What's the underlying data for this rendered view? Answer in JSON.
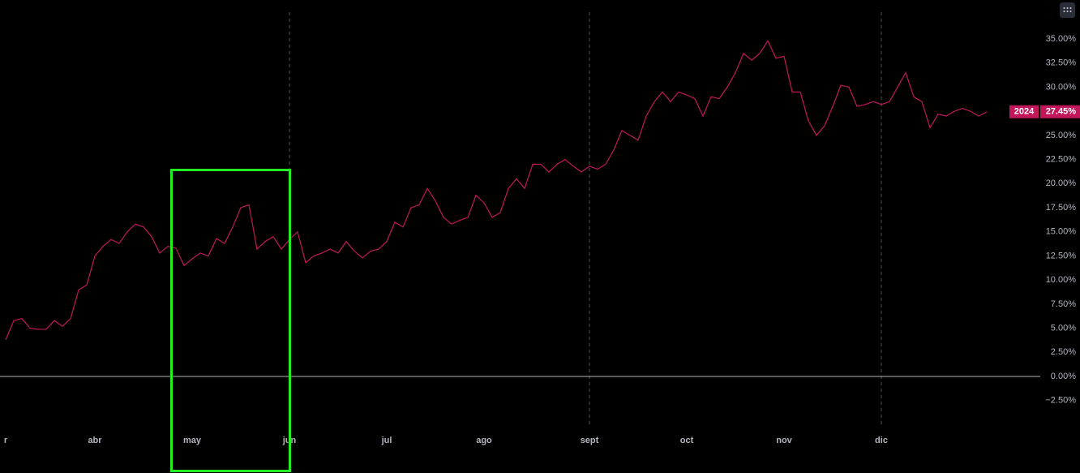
{
  "chart_data": {
    "type": "line",
    "categories": [
      "r",
      null,
      null,
      null,
      null,
      null,
      null,
      null,
      null,
      null,
      null,
      "abr",
      null,
      null,
      null,
      null,
      null,
      null,
      null,
      null,
      null,
      null,
      null,
      "may",
      null,
      null,
      null,
      null,
      null,
      null,
      null,
      null,
      null,
      null,
      null,
      "jun",
      null,
      null,
      null,
      null,
      null,
      null,
      null,
      null,
      null,
      null,
      null,
      "jul",
      null,
      null,
      null,
      null,
      null,
      null,
      null,
      null,
      null,
      null,
      null,
      "ago",
      null,
      null,
      null,
      null,
      null,
      null,
      null,
      null,
      null,
      null,
      null,
      null,
      "sept",
      null,
      null,
      null,
      null,
      null,
      null,
      null,
      null,
      null,
      null,
      null,
      "oct",
      null,
      null,
      null,
      null,
      null,
      null,
      null,
      null,
      null,
      null,
      null,
      "nov",
      null,
      null,
      null,
      null,
      null,
      null,
      null,
      null,
      null,
      null,
      null,
      "dic",
      null,
      null,
      null,
      null,
      null,
      null,
      null,
      null,
      null,
      null,
      null,
      null,
      null
    ],
    "series": [
      {
        "name": "2024",
        "color": "#c2185b",
        "last_value_label": "27.45%",
        "values": [
          3.8,
          5.8,
          6.0,
          5.0,
          4.9,
          4.9,
          5.8,
          5.2,
          6.0,
          9.0,
          9.5,
          12.5,
          13.5,
          14.2,
          13.8,
          15.0,
          15.8,
          15.5,
          14.5,
          12.8,
          13.5,
          13.3,
          11.5,
          12.2,
          12.8,
          12.5,
          14.3,
          13.8,
          15.5,
          17.5,
          17.8,
          13.2,
          14.0,
          14.5,
          13.2,
          14.2,
          15.0,
          11.8,
          12.5,
          12.8,
          13.2,
          12.8,
          14.0,
          13.0,
          12.3,
          13.0,
          13.2,
          14.0,
          16.0,
          15.5,
          17.5,
          17.8,
          19.5,
          18.2,
          16.5,
          15.8,
          16.2,
          16.5,
          18.8,
          18.0,
          16.5,
          17.0,
          19.5,
          20.5,
          19.5,
          22.0,
          22.0,
          21.2,
          22.0,
          22.5,
          21.8,
          21.2,
          21.8,
          21.5,
          22.0,
          23.5,
          25.5,
          25.0,
          24.5,
          27.0,
          28.5,
          29.5,
          28.5,
          29.5,
          29.2,
          28.8,
          27.0,
          29.0,
          28.8,
          30.0,
          31.5,
          33.5,
          32.8,
          33.5,
          34.8,
          33.0,
          33.2,
          29.5,
          29.5,
          26.5,
          25.0,
          26.0,
          28.0,
          30.2,
          30.0,
          28.0,
          28.2,
          28.5,
          28.2,
          28.5,
          30.0,
          31.5,
          29.0,
          28.5,
          25.8,
          27.2,
          27.0,
          27.5,
          27.8,
          27.5,
          27.0,
          27.45
        ]
      }
    ],
    "ylim": [
      -5.13,
      39.04
    ],
    "yticks": [
      {
        "value": 35,
        "label": "35.00%"
      },
      {
        "value": 32.5,
        "label": "32.50%"
      },
      {
        "value": 30,
        "label": "30.00%"
      },
      {
        "value": 27.5,
        "label": "27.50%"
      },
      {
        "value": 25,
        "label": "25.00%"
      },
      {
        "value": 22.5,
        "label": "22.50%"
      },
      {
        "value": 20,
        "label": "20.00%"
      },
      {
        "value": 17.5,
        "label": "17.50%"
      },
      {
        "value": 15,
        "label": "15.00%"
      },
      {
        "value": 12.5,
        "label": "12.50%"
      },
      {
        "value": 10,
        "label": "10.00%"
      },
      {
        "value": 7.5,
        "label": "7.50%"
      },
      {
        "value": 5,
        "label": "5.00%"
      },
      {
        "value": 2.5,
        "label": "2.50%"
      },
      {
        "value": 0,
        "label": "0.00%"
      },
      {
        "value": -2.5,
        "label": "−2.50%"
      }
    ],
    "zero_line": true
  }
}
